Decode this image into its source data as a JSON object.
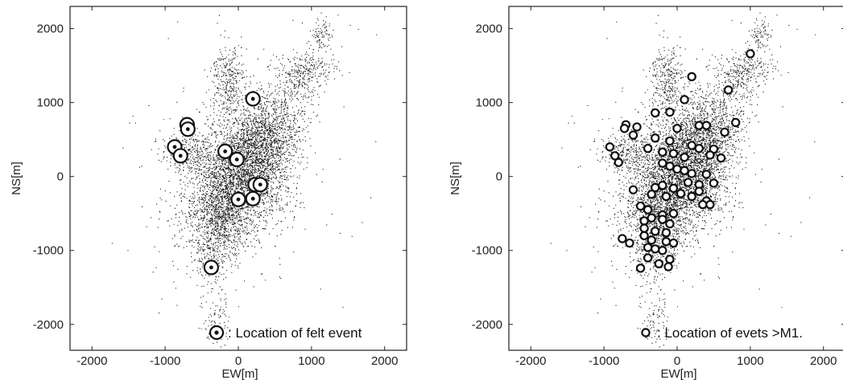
{
  "chart_data": [
    {
      "type": "scatter",
      "title": "",
      "xlabel": "EW[m]",
      "ylabel": "NS[m]",
      "xlim": [
        -2300,
        2300
      ],
      "ylim": [
        -2350,
        2300
      ],
      "xticks": [
        -2000,
        -1000,
        0,
        1000,
        2000
      ],
      "yticks": [
        -2000,
        -1000,
        0,
        1000,
        2000
      ],
      "grid": false,
      "background_points": "dense cloud of small dots, elongated SW–NE, densest around (0, 0)",
      "legend": {
        "label": ": Location of felt event",
        "placement": "bottom-right",
        "marker": "double-circle"
      },
      "series": [
        {
          "name": "felt event",
          "x": [
            200,
            -700,
            -690,
            -870,
            -790,
            -180,
            -20,
            230,
            300,
            0,
            200,
            -370
          ],
          "y": [
            1050,
            700,
            640,
            400,
            280,
            340,
            230,
            -110,
            -110,
            -310,
            -300,
            -1230
          ]
        }
      ]
    },
    {
      "type": "scatter",
      "title": "",
      "xlabel": "EW[m]",
      "ylabel": "NS[m]",
      "xlim": [
        -2300,
        2300
      ],
      "ylim": [
        -2350,
        2300
      ],
      "xticks": [
        -2000,
        -1000,
        0,
        1000,
        2000
      ],
      "yticks": [
        -2000,
        -1000,
        0,
        1000,
        2000
      ],
      "grid": false,
      "background_points": "dense cloud of small dots, elongated SW–NE, densest around (0, 0)",
      "legend": {
        "label": ": Location of evets >M1.",
        "placement": "bottom-right",
        "marker": "open-circle"
      },
      "series": [
        {
          "name": ">M1 events",
          "x": [
            1000,
            200,
            700,
            100,
            300,
            400,
            800,
            650,
            -100,
            -300,
            -700,
            -720,
            -550,
            -600,
            -300,
            -100,
            0,
            200,
            500,
            -920,
            -850,
            -800,
            -400,
            -200,
            -50,
            100,
            300,
            450,
            600,
            -200,
            -100,
            0,
            100,
            200,
            400,
            -600,
            -300,
            -200,
            -50,
            150,
            300,
            500,
            300,
            -350,
            -150,
            50,
            200,
            400,
            -500,
            -400,
            -200,
            -50,
            -450,
            -350,
            -200,
            -100,
            -450,
            -300,
            -150,
            -450,
            -350,
            -150,
            -50,
            -750,
            -650,
            -400,
            -300,
            -200,
            -100,
            -400,
            -250,
            -120,
            350,
            450,
            -500
          ],
          "y": [
            1660,
            1350,
            1170,
            1040,
            690,
            690,
            730,
            600,
            870,
            860,
            700,
            650,
            670,
            560,
            520,
            480,
            650,
            420,
            370,
            400,
            280,
            190,
            380,
            330,
            310,
            260,
            380,
            290,
            250,
            180,
            140,
            100,
            80,
            40,
            30,
            -180,
            -150,
            -120,
            -160,
            -80,
            -110,
            -90,
            -200,
            -240,
            -270,
            -230,
            -270,
            -330,
            -400,
            -450,
            -520,
            -500,
            -600,
            -560,
            -580,
            -640,
            -700,
            -740,
            -760,
            -800,
            -860,
            -880,
            -900,
            -840,
            -900,
            -960,
            -980,
            -1000,
            -1120,
            -1100,
            -1180,
            -1220,
            -380,
            -380,
            -1240
          ]
        }
      ]
    }
  ]
}
